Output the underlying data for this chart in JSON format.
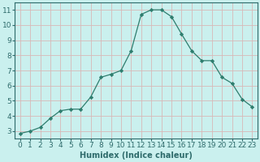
{
  "x": [
    0,
    1,
    2,
    3,
    4,
    5,
    6,
    7,
    8,
    9,
    10,
    11,
    12,
    13,
    14,
    15,
    16,
    17,
    18,
    19,
    20,
    21,
    22,
    23
  ],
  "y": [
    2.85,
    3.0,
    3.25,
    3.85,
    4.35,
    4.45,
    4.45,
    5.25,
    6.55,
    6.75,
    7.0,
    8.3,
    10.7,
    11.0,
    11.0,
    10.55,
    9.4,
    8.3,
    7.65,
    7.65,
    6.55,
    6.15,
    5.1,
    4.6
  ],
  "line_color": "#2e7d6e",
  "marker": "D",
  "markersize": 2.2,
  "linewidth": 0.9,
  "xlabel": "Humidex (Indice chaleur)",
  "xlim": [
    -0.5,
    23.5
  ],
  "ylim": [
    2.5,
    11.5
  ],
  "yticks": [
    3,
    4,
    5,
    6,
    7,
    8,
    9,
    10,
    11
  ],
  "xticks": [
    0,
    1,
    2,
    3,
    4,
    5,
    6,
    7,
    8,
    9,
    10,
    11,
    12,
    13,
    14,
    15,
    16,
    17,
    18,
    19,
    20,
    21,
    22,
    23
  ],
  "bg_color": "#caf0ee",
  "grid_color": "#d8b8b8",
  "tick_color": "#2e6b6b",
  "label_color": "#2e6b6b",
  "xlabel_fontsize": 7,
  "tick_fontsize": 6.5
}
